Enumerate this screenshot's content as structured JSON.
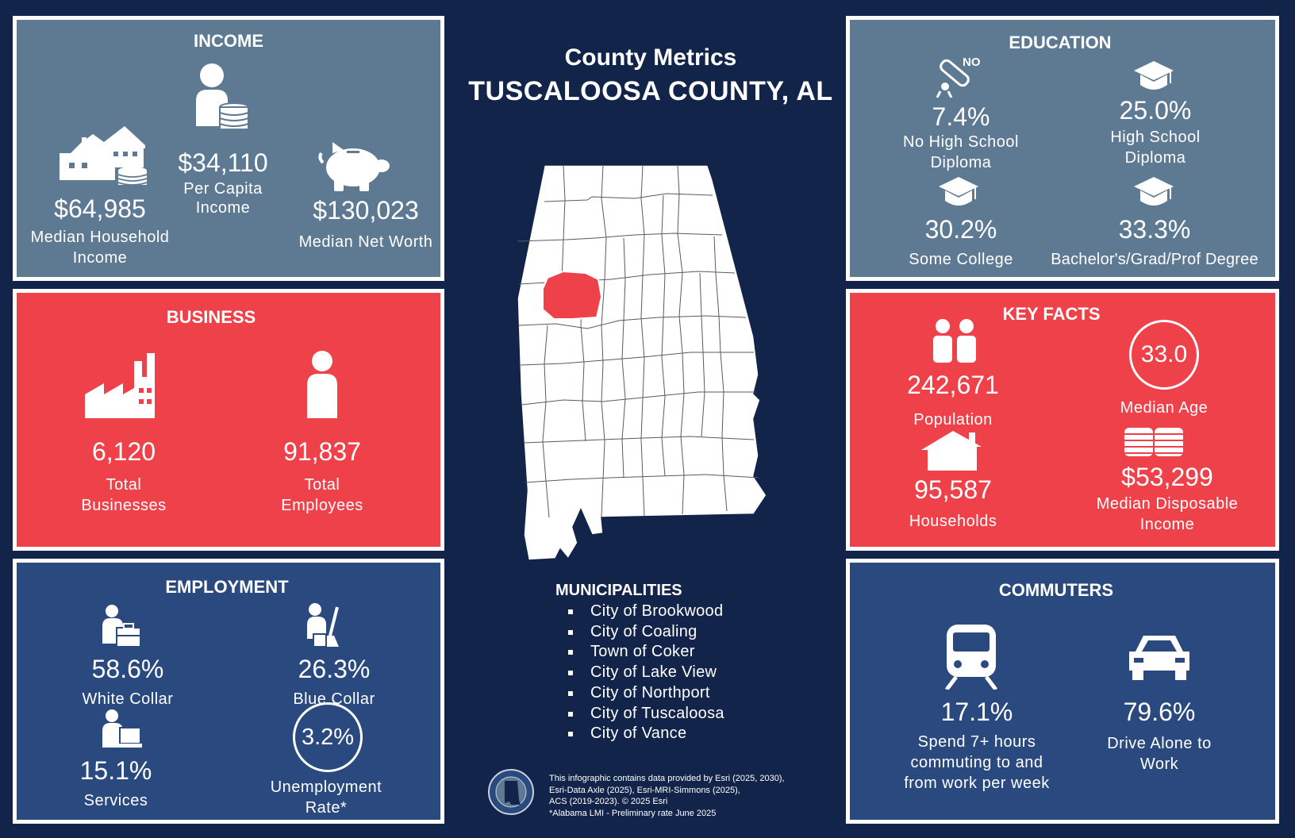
{
  "header": {
    "title": "County Metrics",
    "county": "TUSCALOOSA COUNTY, AL"
  },
  "colors": {
    "background": "#13244a",
    "slate_panel": "#5e7a93",
    "red_panel": "#ef414a",
    "blue_panel": "#2a4a7f",
    "highlight_county": "#ef414a"
  },
  "income": {
    "title": "INCOME",
    "household": {
      "value": "$64,985",
      "label_line1": "Median Household",
      "label_line2": "Income",
      "icon": "house-coins-icon"
    },
    "per_capita": {
      "value": "$34,110",
      "label_line1": "Per Capita",
      "label_line2": "Income",
      "icon": "person-coins-icon"
    },
    "net_worth": {
      "value": "$130,023",
      "label": "Median Net Worth",
      "icon": "piggy-bank-icon"
    }
  },
  "business": {
    "title": "BUSINESS",
    "businesses": {
      "value": "6,120",
      "label_line1": "Total",
      "label_line2": "Businesses",
      "icon": "factory-icon"
    },
    "employees": {
      "value": "91,837",
      "label_line1": "Total",
      "label_line2": "Employees",
      "icon": "person-icon"
    }
  },
  "employment": {
    "title": "EMPLOYMENT",
    "white_collar": {
      "value": "58.6%",
      "label": "White Collar",
      "icon": "briefcase-worker-icon"
    },
    "blue_collar": {
      "value": "26.3%",
      "label": "Blue Collar",
      "icon": "cleaning-worker-icon"
    },
    "services": {
      "value": "15.1%",
      "label": "Services",
      "icon": "desk-worker-icon"
    },
    "unemployment": {
      "value": "3.2%",
      "label_line1": "Unemployment",
      "label_line2": "Rate*"
    }
  },
  "education": {
    "title": "EDUCATION",
    "no_diploma": {
      "value": "7.4%",
      "label_line1": "No High School",
      "label_line2": "Diploma",
      "icon_text": "NO",
      "icon": "diploma-icon"
    },
    "hs_diploma": {
      "value": "25.0%",
      "label_line1": "High School",
      "label_line2": "Diploma",
      "icon": "graduation-cap-icon"
    },
    "some_college": {
      "value": "30.2%",
      "label": "Some College",
      "icon": "graduation-cap-icon"
    },
    "bachelors": {
      "value": "33.3%",
      "label": "Bachelor's/Grad/Prof Degree",
      "icon": "graduation-cap-icon"
    }
  },
  "key_facts": {
    "title": "KEY FACTS",
    "population": {
      "value": "242,671",
      "label": "Population",
      "icon": "people-icon"
    },
    "median_age": {
      "value": "33.0",
      "label": "Median Age"
    },
    "households": {
      "value": "95,587",
      "label": "Households",
      "icon": "house-icon"
    },
    "disposable_income": {
      "value": "$53,299",
      "label_line1": "Median Disposable",
      "label_line2": "Income",
      "icon": "coin-stacks-icon"
    }
  },
  "commuters": {
    "title": "COMMUTERS",
    "long_commute": {
      "value": "17.1%",
      "label_line1": "Spend 7+ hours",
      "label_line2": "commuting to and",
      "label_line3": "from work per week",
      "icon": "train-icon"
    },
    "drive_alone": {
      "value": "79.6%",
      "label_line1": "Drive Alone to",
      "label_line2": "Work",
      "icon": "car-icon"
    }
  },
  "municipalities": {
    "title": "MUNICIPALITIES",
    "items": [
      "City of Brookwood",
      "City of Coaling",
      "Town of Coker",
      "City of Lake View",
      "City of Northport",
      "City of Tuscaloosa",
      "City of Vance"
    ]
  },
  "source": {
    "line1": "This infographic contains data provided by Esri (2025, 2030),",
    "line2": "Esri-Data Axle (2025), Esri-MRI-Simmons (2025),",
    "line3": "ACS (2019-2023). © 2025 Esri",
    "line4": "*Alabama LMI - Preliminary rate June 2025"
  }
}
